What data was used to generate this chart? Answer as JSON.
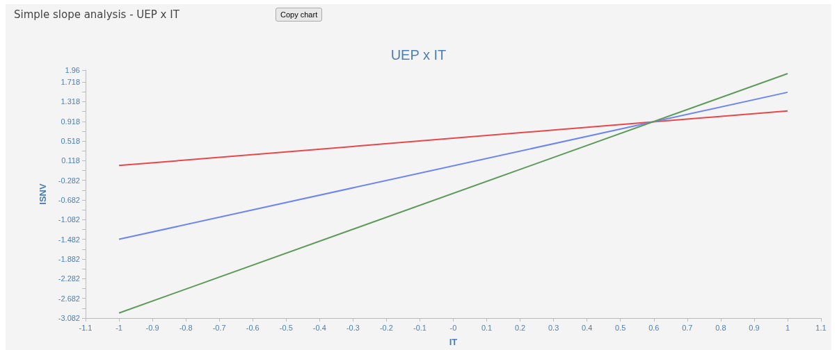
{
  "chart_data": {
    "type": "line",
    "title": "UEP x IT",
    "xlabel": "IT",
    "ylabel": "ISNV",
    "annotations": [
      "Simple slope analysis - UEP x IT",
      "Copy chart"
    ],
    "x": [
      -1,
      1
    ],
    "series": [
      {
        "color": "#e8474a",
        "values": [
          0.02,
          1.13
        ]
      },
      {
        "color": "#6d85f0",
        "values": [
          -1.48,
          1.51
        ]
      },
      {
        "color": "#5e9a5a",
        "values": [
          -2.98,
          1.89
        ]
      }
    ],
    "xlim": [
      -1.1,
      1.1
    ],
    "xticks": [
      -1.1,
      -1,
      -0.9,
      -0.8,
      -0.7,
      -0.6,
      -0.5,
      -0.4,
      -0.3,
      -0.2,
      -0.1,
      {
        "value": 0,
        "label": "-0"
      },
      0.1,
      0.2,
      0.3,
      0.4,
      0.5,
      0.6,
      0.7,
      0.8,
      0.9,
      1,
      1.1
    ],
    "ylim": [
      -3.082,
      1.96
    ],
    "yticks": [
      -3.082,
      {
        "value": -2.882,
        "label": null
      },
      -2.682,
      {
        "value": -2.482,
        "label": null
      },
      -2.282,
      {
        "value": -2.082,
        "label": null
      },
      -1.882,
      {
        "value": -1.682,
        "label": null
      },
      -1.482,
      {
        "value": -1.282,
        "label": null
      },
      -1.082,
      {
        "value": -0.882,
        "label": null
      },
      -0.682,
      {
        "value": -0.482,
        "label": null
      },
      -0.282,
      {
        "value": -0.082,
        "label": null
      },
      0.118,
      {
        "value": 0.318,
        "label": null
      },
      0.518,
      {
        "value": 0.718,
        "label": null
      },
      0.918,
      {
        "value": 1.118,
        "label": null
      },
      1.318,
      {
        "value": 1.518,
        "label": null
      },
      1.718,
      1.96
    ],
    "grid": false,
    "marker": "none",
    "line_style": "solid"
  }
}
